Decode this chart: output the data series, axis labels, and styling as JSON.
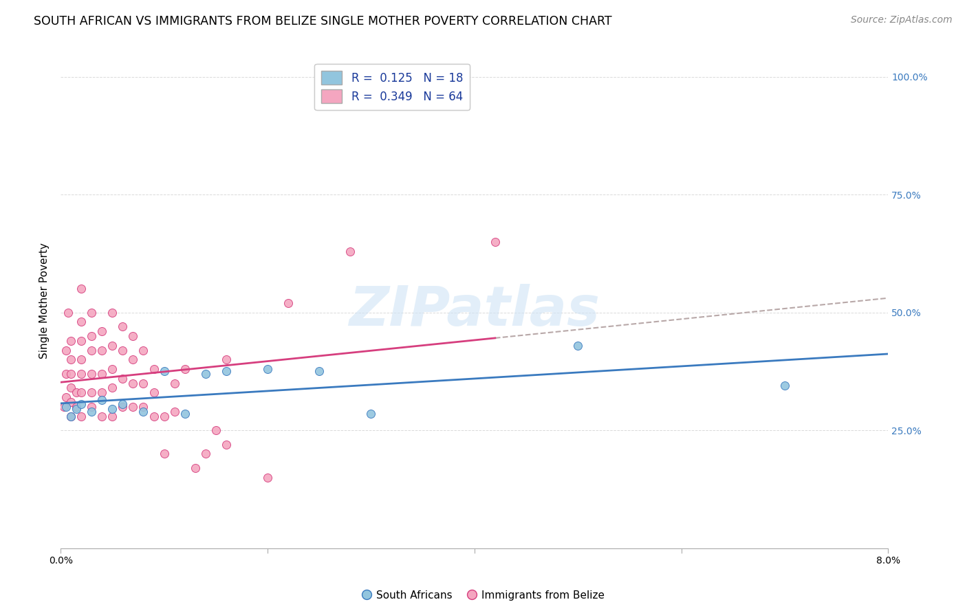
{
  "title": "SOUTH AFRICAN VS IMMIGRANTS FROM BELIZE SINGLE MOTHER POVERTY CORRELATION CHART",
  "source": "Source: ZipAtlas.com",
  "ylabel": "Single Mother Poverty",
  "yticks": [
    0.0,
    0.25,
    0.5,
    0.75,
    1.0
  ],
  "ytick_labels": [
    "",
    "25.0%",
    "50.0%",
    "75.0%",
    "100.0%"
  ],
  "xlim": [
    0.0,
    0.08
  ],
  "ylim": [
    0.0,
    1.05
  ],
  "blue_color": "#92c5de",
  "pink_color": "#f4a6c0",
  "blue_line_color": "#3a7abf",
  "pink_line_color": "#d63e7e",
  "dashed_line_color": "#b8a8a8",
  "watermark_text": "ZIPatlas",
  "title_fontsize": 12.5,
  "axis_label_fontsize": 11,
  "tick_fontsize": 10,
  "source_fontsize": 10,
  "south_africans_x": [
    0.0005,
    0.001,
    0.0015,
    0.002,
    0.003,
    0.004,
    0.005,
    0.006,
    0.008,
    0.01,
    0.012,
    0.014,
    0.016,
    0.02,
    0.025,
    0.03,
    0.05,
    0.07
  ],
  "south_africans_y": [
    0.3,
    0.28,
    0.295,
    0.305,
    0.29,
    0.315,
    0.295,
    0.305,
    0.29,
    0.375,
    0.285,
    0.37,
    0.375,
    0.38,
    0.375,
    0.285,
    0.43,
    0.345
  ],
  "belize_x": [
    0.0003,
    0.0005,
    0.0005,
    0.0005,
    0.0007,
    0.001,
    0.001,
    0.001,
    0.001,
    0.001,
    0.001,
    0.0015,
    0.0015,
    0.002,
    0.002,
    0.002,
    0.002,
    0.002,
    0.002,
    0.002,
    0.003,
    0.003,
    0.003,
    0.003,
    0.003,
    0.003,
    0.004,
    0.004,
    0.004,
    0.004,
    0.004,
    0.005,
    0.005,
    0.005,
    0.005,
    0.005,
    0.006,
    0.006,
    0.006,
    0.006,
    0.007,
    0.007,
    0.007,
    0.007,
    0.008,
    0.008,
    0.008,
    0.009,
    0.009,
    0.009,
    0.01,
    0.01,
    0.011,
    0.011,
    0.012,
    0.013,
    0.014,
    0.015,
    0.016,
    0.016,
    0.02,
    0.022,
    0.028,
    0.042
  ],
  "belize_y": [
    0.3,
    0.32,
    0.37,
    0.42,
    0.5,
    0.28,
    0.31,
    0.34,
    0.37,
    0.4,
    0.44,
    0.3,
    0.33,
    0.28,
    0.33,
    0.37,
    0.4,
    0.44,
    0.48,
    0.55,
    0.3,
    0.33,
    0.37,
    0.42,
    0.45,
    0.5,
    0.28,
    0.33,
    0.37,
    0.42,
    0.46,
    0.28,
    0.34,
    0.38,
    0.43,
    0.5,
    0.3,
    0.36,
    0.42,
    0.47,
    0.3,
    0.35,
    0.4,
    0.45,
    0.3,
    0.35,
    0.42,
    0.28,
    0.33,
    0.38,
    0.2,
    0.28,
    0.29,
    0.35,
    0.38,
    0.17,
    0.2,
    0.25,
    0.22,
    0.4,
    0.15,
    0.52,
    0.63,
    0.65
  ]
}
